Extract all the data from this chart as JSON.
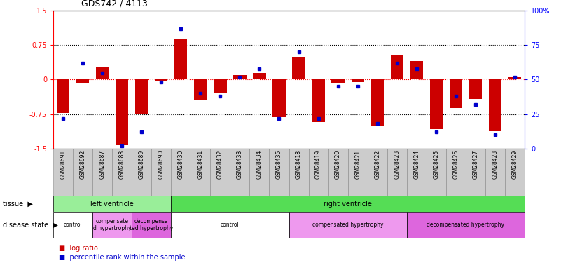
{
  "title": "GDS742 / 4113",
  "samples": [
    "GSM28691",
    "GSM28692",
    "GSM28687",
    "GSM28688",
    "GSM28689",
    "GSM28690",
    "GSM28430",
    "GSM28431",
    "GSM28432",
    "GSM28433",
    "GSM28434",
    "GSM28435",
    "GSM28418",
    "GSM28419",
    "GSM28420",
    "GSM28421",
    "GSM28422",
    "GSM28423",
    "GSM28424",
    "GSM28425",
    "GSM28426",
    "GSM28427",
    "GSM28428",
    "GSM28429"
  ],
  "log_ratio": [
    -0.72,
    -0.08,
    0.28,
    -1.42,
    -0.75,
    -0.04,
    0.88,
    -0.45,
    -0.3,
    0.1,
    0.15,
    -0.82,
    0.5,
    -0.92,
    -0.08,
    -0.06,
    -1.0,
    0.52,
    0.4,
    -1.08,
    -0.62,
    -0.42,
    -1.12,
    0.06
  ],
  "percentile": [
    22,
    62,
    55,
    2,
    12,
    48,
    87,
    40,
    38,
    52,
    58,
    22,
    70,
    22,
    45,
    45,
    18,
    62,
    58,
    12,
    38,
    32,
    10,
    52
  ],
  "bar_color": "#cc0000",
  "dot_color": "#0000cc",
  "ylim_left": [
    -1.5,
    1.5
  ],
  "ylim_right": [
    0,
    100
  ],
  "yticks_left": [
    -1.5,
    -0.75,
    0,
    0.75,
    1.5
  ],
  "yticks_right": [
    0,
    25,
    50,
    75,
    100
  ],
  "ytick_labels_left": [
    "-1.5",
    "-0.75",
    "0",
    "0.75",
    "1.5"
  ],
  "ytick_labels_right": [
    "0",
    "25",
    "50",
    "75",
    "100%"
  ],
  "hlines_dotted": [
    -0.75,
    0.75
  ],
  "hline_red": 0,
  "tissue_groups": [
    {
      "label": "left ventricle",
      "start": 0,
      "end": 6,
      "color": "#99ee99"
    },
    {
      "label": "right ventricle",
      "start": 6,
      "end": 24,
      "color": "#55dd55"
    }
  ],
  "disease_groups": [
    {
      "label": "control",
      "start": 0,
      "end": 2,
      "color": "#ffffff"
    },
    {
      "label": "compensate\nd hypertrophy",
      "start": 2,
      "end": 4,
      "color": "#ee99ee"
    },
    {
      "label": "decompensa\nted hypertrophy",
      "start": 4,
      "end": 6,
      "color": "#dd66dd"
    },
    {
      "label": "control",
      "start": 6,
      "end": 12,
      "color": "#ffffff"
    },
    {
      "label": "compensated hypertrophy",
      "start": 12,
      "end": 18,
      "color": "#ee99ee"
    },
    {
      "label": "decompensated hypertrophy",
      "start": 18,
      "end": 24,
      "color": "#dd66dd"
    }
  ],
  "tissue_row_label": "tissue",
  "disease_row_label": "disease state",
  "legend_log_ratio": "log ratio",
  "legend_percentile": "percentile rank within the sample",
  "legend_color_red": "#cc0000",
  "legend_color_blue": "#0000cc",
  "sample_box_color": "#cccccc",
  "sample_box_edge": "#888888"
}
